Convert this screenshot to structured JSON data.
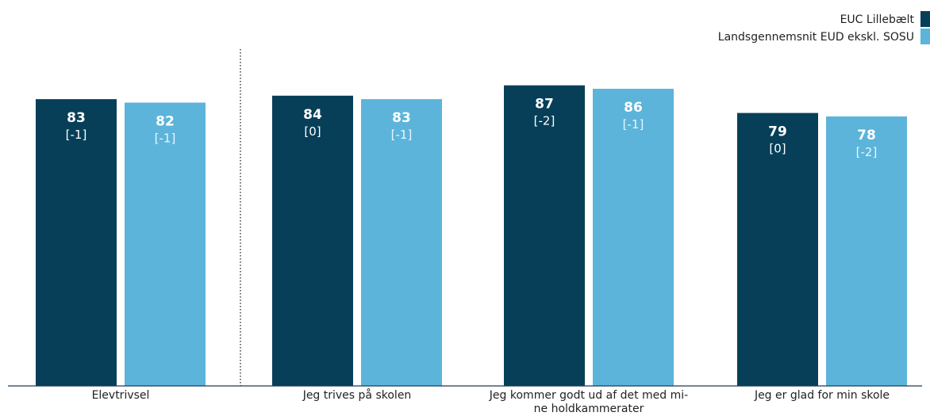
{
  "chart_data": {
    "type": "bar",
    "categories": [
      "Elevtrivsel",
      "Jeg trives på skolen",
      "Jeg kommer godt ud af det med mi-\nne holdkammerater",
      "Jeg er glad for min skole"
    ],
    "series": [
      {
        "name": "EUC Lillebælt",
        "color": "#073f58",
        "values": [
          83,
          84,
          87,
          79
        ],
        "changes": [
          "[-1]",
          "[0]",
          "[-2]",
          "[0]"
        ]
      },
      {
        "name": "Landsgennemsnit EUD ekskl. SOSU",
        "color": "#5cb4da",
        "values": [
          82,
          83,
          86,
          78
        ],
        "changes": [
          "[-1]",
          "[-1]",
          "[-1]",
          "[-2]"
        ]
      }
    ],
    "ylim": [
      0,
      100
    ],
    "grid": false,
    "legend_position": "top-right",
    "separator_after_category": 0
  }
}
